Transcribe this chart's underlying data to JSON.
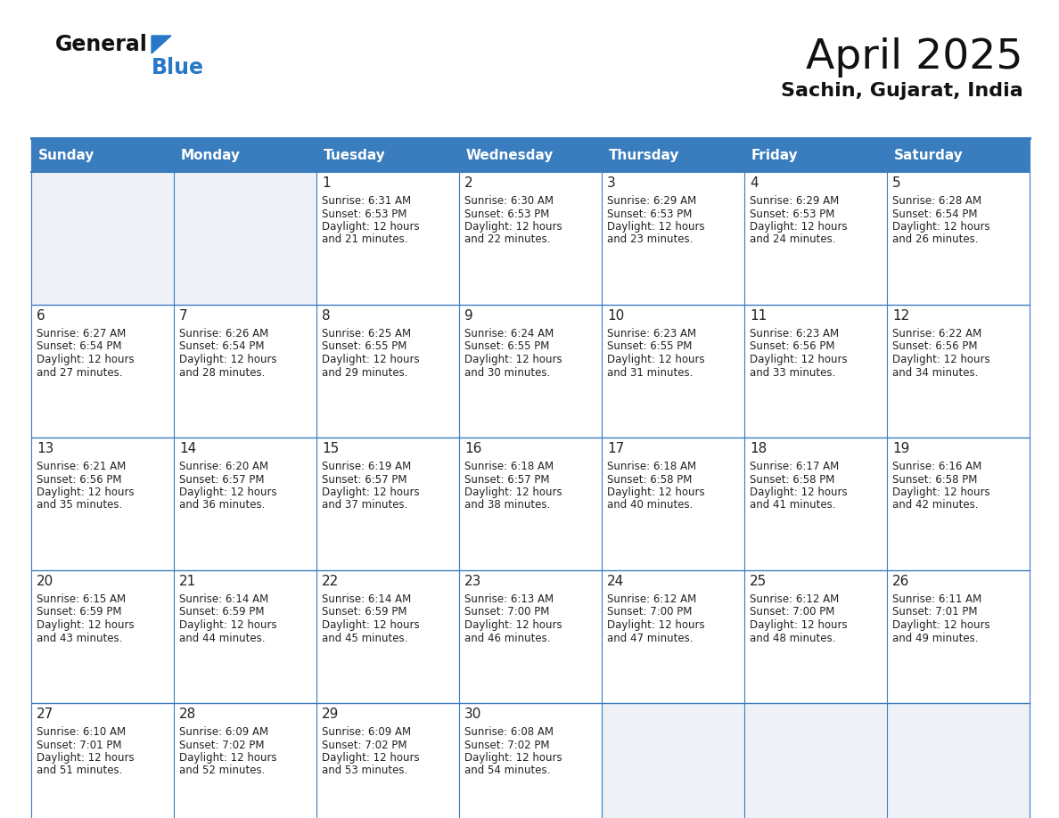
{
  "title": "April 2025",
  "subtitle": "Sachin, Gujarat, India",
  "header_bg": "#3a7dbf",
  "header_text": "#ffffff",
  "cell_bg": "#ffffff",
  "cell_day_strip_bg": "#eef2f7",
  "empty_cell_bg": "#eef2f7",
  "border_color": "#3a7dbf",
  "row_border_color": "#3a7dbf",
  "text_color": "#222222",
  "logo_general_color": "#111111",
  "logo_blue_color": "#2878c8",
  "logo_triangle_color": "#2878c8",
  "days_of_week": [
    "Sunday",
    "Monday",
    "Tuesday",
    "Wednesday",
    "Thursday",
    "Friday",
    "Saturday"
  ],
  "weeks": [
    [
      {
        "day": "",
        "sunrise": "",
        "sunset": "",
        "daylight_line1": "",
        "daylight_line2": ""
      },
      {
        "day": "",
        "sunrise": "",
        "sunset": "",
        "daylight_line1": "",
        "daylight_line2": ""
      },
      {
        "day": "1",
        "sunrise": "Sunrise: 6:31 AM",
        "sunset": "Sunset: 6:53 PM",
        "daylight_line1": "Daylight: 12 hours",
        "daylight_line2": "and 21 minutes."
      },
      {
        "day": "2",
        "sunrise": "Sunrise: 6:30 AM",
        "sunset": "Sunset: 6:53 PM",
        "daylight_line1": "Daylight: 12 hours",
        "daylight_line2": "and 22 minutes."
      },
      {
        "day": "3",
        "sunrise": "Sunrise: 6:29 AM",
        "sunset": "Sunset: 6:53 PM",
        "daylight_line1": "Daylight: 12 hours",
        "daylight_line2": "and 23 minutes."
      },
      {
        "day": "4",
        "sunrise": "Sunrise: 6:29 AM",
        "sunset": "Sunset: 6:53 PM",
        "daylight_line1": "Daylight: 12 hours",
        "daylight_line2": "and 24 minutes."
      },
      {
        "day": "5",
        "sunrise": "Sunrise: 6:28 AM",
        "sunset": "Sunset: 6:54 PM",
        "daylight_line1": "Daylight: 12 hours",
        "daylight_line2": "and 26 minutes."
      }
    ],
    [
      {
        "day": "6",
        "sunrise": "Sunrise: 6:27 AM",
        "sunset": "Sunset: 6:54 PM",
        "daylight_line1": "Daylight: 12 hours",
        "daylight_line2": "and 27 minutes."
      },
      {
        "day": "7",
        "sunrise": "Sunrise: 6:26 AM",
        "sunset": "Sunset: 6:54 PM",
        "daylight_line1": "Daylight: 12 hours",
        "daylight_line2": "and 28 minutes."
      },
      {
        "day": "8",
        "sunrise": "Sunrise: 6:25 AM",
        "sunset": "Sunset: 6:55 PM",
        "daylight_line1": "Daylight: 12 hours",
        "daylight_line2": "and 29 minutes."
      },
      {
        "day": "9",
        "sunrise": "Sunrise: 6:24 AM",
        "sunset": "Sunset: 6:55 PM",
        "daylight_line1": "Daylight: 12 hours",
        "daylight_line2": "and 30 minutes."
      },
      {
        "day": "10",
        "sunrise": "Sunrise: 6:23 AM",
        "sunset": "Sunset: 6:55 PM",
        "daylight_line1": "Daylight: 12 hours",
        "daylight_line2": "and 31 minutes."
      },
      {
        "day": "11",
        "sunrise": "Sunrise: 6:23 AM",
        "sunset": "Sunset: 6:56 PM",
        "daylight_line1": "Daylight: 12 hours",
        "daylight_line2": "and 33 minutes."
      },
      {
        "day": "12",
        "sunrise": "Sunrise: 6:22 AM",
        "sunset": "Sunset: 6:56 PM",
        "daylight_line1": "Daylight: 12 hours",
        "daylight_line2": "and 34 minutes."
      }
    ],
    [
      {
        "day": "13",
        "sunrise": "Sunrise: 6:21 AM",
        "sunset": "Sunset: 6:56 PM",
        "daylight_line1": "Daylight: 12 hours",
        "daylight_line2": "and 35 minutes."
      },
      {
        "day": "14",
        "sunrise": "Sunrise: 6:20 AM",
        "sunset": "Sunset: 6:57 PM",
        "daylight_line1": "Daylight: 12 hours",
        "daylight_line2": "and 36 minutes."
      },
      {
        "day": "15",
        "sunrise": "Sunrise: 6:19 AM",
        "sunset": "Sunset: 6:57 PM",
        "daylight_line1": "Daylight: 12 hours",
        "daylight_line2": "and 37 minutes."
      },
      {
        "day": "16",
        "sunrise": "Sunrise: 6:18 AM",
        "sunset": "Sunset: 6:57 PM",
        "daylight_line1": "Daylight: 12 hours",
        "daylight_line2": "and 38 minutes."
      },
      {
        "day": "17",
        "sunrise": "Sunrise: 6:18 AM",
        "sunset": "Sunset: 6:58 PM",
        "daylight_line1": "Daylight: 12 hours",
        "daylight_line2": "and 40 minutes."
      },
      {
        "day": "18",
        "sunrise": "Sunrise: 6:17 AM",
        "sunset": "Sunset: 6:58 PM",
        "daylight_line1": "Daylight: 12 hours",
        "daylight_line2": "and 41 minutes."
      },
      {
        "day": "19",
        "sunrise": "Sunrise: 6:16 AM",
        "sunset": "Sunset: 6:58 PM",
        "daylight_line1": "Daylight: 12 hours",
        "daylight_line2": "and 42 minutes."
      }
    ],
    [
      {
        "day": "20",
        "sunrise": "Sunrise: 6:15 AM",
        "sunset": "Sunset: 6:59 PM",
        "daylight_line1": "Daylight: 12 hours",
        "daylight_line2": "and 43 minutes."
      },
      {
        "day": "21",
        "sunrise": "Sunrise: 6:14 AM",
        "sunset": "Sunset: 6:59 PM",
        "daylight_line1": "Daylight: 12 hours",
        "daylight_line2": "and 44 minutes."
      },
      {
        "day": "22",
        "sunrise": "Sunrise: 6:14 AM",
        "sunset": "Sunset: 6:59 PM",
        "daylight_line1": "Daylight: 12 hours",
        "daylight_line2": "and 45 minutes."
      },
      {
        "day": "23",
        "sunrise": "Sunrise: 6:13 AM",
        "sunset": "Sunset: 7:00 PM",
        "daylight_line1": "Daylight: 12 hours",
        "daylight_line2": "and 46 minutes."
      },
      {
        "day": "24",
        "sunrise": "Sunrise: 6:12 AM",
        "sunset": "Sunset: 7:00 PM",
        "daylight_line1": "Daylight: 12 hours",
        "daylight_line2": "and 47 minutes."
      },
      {
        "day": "25",
        "sunrise": "Sunrise: 6:12 AM",
        "sunset": "Sunset: 7:00 PM",
        "daylight_line1": "Daylight: 12 hours",
        "daylight_line2": "and 48 minutes."
      },
      {
        "day": "26",
        "sunrise": "Sunrise: 6:11 AM",
        "sunset": "Sunset: 7:01 PM",
        "daylight_line1": "Daylight: 12 hours",
        "daylight_line2": "and 49 minutes."
      }
    ],
    [
      {
        "day": "27",
        "sunrise": "Sunrise: 6:10 AM",
        "sunset": "Sunset: 7:01 PM",
        "daylight_line1": "Daylight: 12 hours",
        "daylight_line2": "and 51 minutes."
      },
      {
        "day": "28",
        "sunrise": "Sunrise: 6:09 AM",
        "sunset": "Sunset: 7:02 PM",
        "daylight_line1": "Daylight: 12 hours",
        "daylight_line2": "and 52 minutes."
      },
      {
        "day": "29",
        "sunrise": "Sunrise: 6:09 AM",
        "sunset": "Sunset: 7:02 PM",
        "daylight_line1": "Daylight: 12 hours",
        "daylight_line2": "and 53 minutes."
      },
      {
        "day": "30",
        "sunrise": "Sunrise: 6:08 AM",
        "sunset": "Sunset: 7:02 PM",
        "daylight_line1": "Daylight: 12 hours",
        "daylight_line2": "and 54 minutes."
      },
      {
        "day": "",
        "sunrise": "",
        "sunset": "",
        "daylight_line1": "",
        "daylight_line2": ""
      },
      {
        "day": "",
        "sunrise": "",
        "sunset": "",
        "daylight_line1": "",
        "daylight_line2": ""
      },
      {
        "day": "",
        "sunrise": "",
        "sunset": "",
        "daylight_line1": "",
        "daylight_line2": ""
      }
    ]
  ]
}
